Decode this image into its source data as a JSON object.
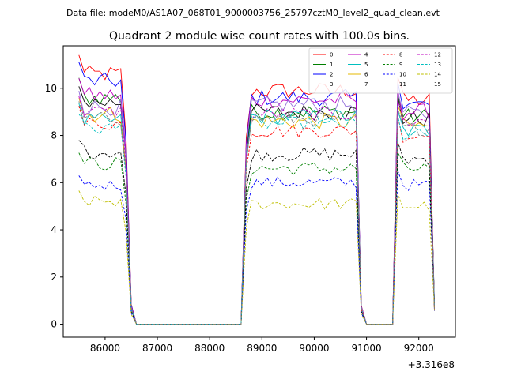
{
  "chart_data": {
    "type": "line",
    "suptitle": "Data file: modeM0/AS1A07_068T01_9000003756_25797cztM0_level2_quad_clean.evt",
    "title": "Quadrant 2 module wise count rates with 100.0s bins.",
    "xlabel": "",
    "ylabel": "",
    "xlim": [
      85200,
      92700
    ],
    "ylim": [
      -0.55,
      11.8
    ],
    "x_offset_label": "+3.316e8",
    "xticks": [
      86000,
      87000,
      88000,
      89000,
      90000,
      91000,
      92000
    ],
    "xtick_labels": [
      "86000",
      "87000",
      "88000",
      "89000",
      "90000",
      "91000",
      "92000"
    ],
    "yticks": [
      0,
      2,
      4,
      6,
      8,
      10
    ],
    "ytick_labels": [
      "0",
      "2",
      "4",
      "6",
      "8",
      "10"
    ],
    "legend_position": "upper right",
    "segments": [
      {
        "start": 85500,
        "n": 11,
        "step": 100
      },
      {
        "start": 86600,
        "n": 21,
        "step": 100
      },
      {
        "start": 88700,
        "n": 23,
        "step": 100
      },
      {
        "start": 91000,
        "n": 6,
        "step": 100
      },
      {
        "start": 91600,
        "n": 8,
        "step": 100
      }
    ],
    "series": [
      {
        "name": "0",
        "color": "#ff0000",
        "dash": "solid",
        "levels": [
          10.6,
          0,
          9.9,
          0,
          9.5
        ],
        "wiggle": 0.35
      },
      {
        "name": "1",
        "color": "#008000",
        "dash": "solid",
        "levels": [
          9.6,
          0,
          9.0,
          0,
          8.8
        ],
        "wiggle": 0.35
      },
      {
        "name": "2",
        "color": "#0000ff",
        "dash": "solid",
        "levels": [
          10.3,
          0,
          9.6,
          0,
          9.3
        ],
        "wiggle": 0.35
      },
      {
        "name": "3",
        "color": "#000000",
        "dash": "solid",
        "levels": [
          9.4,
          0,
          9.0,
          0,
          8.7
        ],
        "wiggle": 0.35
      },
      {
        "name": "4",
        "color": "#bf00bf",
        "dash": "solid",
        "levels": [
          9.7,
          0,
          9.5,
          0,
          9.0
        ],
        "wiggle": 0.35
      },
      {
        "name": "5",
        "color": "#00bfbf",
        "dash": "solid",
        "levels": [
          8.6,
          0,
          8.8,
          0,
          8.2
        ],
        "wiggle": 0.35
      },
      {
        "name": "6",
        "color": "#e6b800",
        "dash": "solid",
        "levels": [
          8.9,
          0,
          8.6,
          0,
          8.4
        ],
        "wiggle": 0.35
      },
      {
        "name": "7",
        "color": "#9370db",
        "dash": "solid",
        "levels": [
          9.2,
          0,
          9.3,
          0,
          8.9
        ],
        "wiggle": 0.35
      },
      {
        "name": "8",
        "color": "#ff0000",
        "dash": "dashed",
        "levels": [
          8.5,
          0,
          8.2,
          0,
          8.0
        ],
        "wiggle": 0.3
      },
      {
        "name": "9",
        "color": "#008000",
        "dash": "dashed",
        "levels": [
          6.8,
          0,
          6.6,
          0,
          6.6
        ],
        "wiggle": 0.3
      },
      {
        "name": "10",
        "color": "#0000ff",
        "dash": "dashed",
        "levels": [
          5.9,
          0,
          6.0,
          0,
          5.9
        ],
        "wiggle": 0.25
      },
      {
        "name": "11",
        "color": "#000000",
        "dash": "dashed",
        "levels": [
          7.3,
          0,
          7.2,
          0,
          7.0
        ],
        "wiggle": 0.3
      },
      {
        "name": "12",
        "color": "#bf00bf",
        "dash": "dashed",
        "levels": [
          9.0,
          0,
          8.9,
          0,
          8.6
        ],
        "wiggle": 0.3
      },
      {
        "name": "13",
        "color": "#00bfbf",
        "dash": "dashed",
        "levels": [
          8.3,
          0,
          8.5,
          0,
          8.0
        ],
        "wiggle": 0.3
      },
      {
        "name": "14",
        "color": "#bfbf00",
        "dash": "dashed",
        "levels": [
          5.2,
          0,
          5.1,
          0,
          5.0
        ],
        "wiggle": 0.25
      },
      {
        "name": "15",
        "color": "#808080",
        "dash": "dashed",
        "levels": [
          8.7,
          0,
          8.7,
          0,
          8.3
        ],
        "wiggle": 0.3
      }
    ]
  }
}
